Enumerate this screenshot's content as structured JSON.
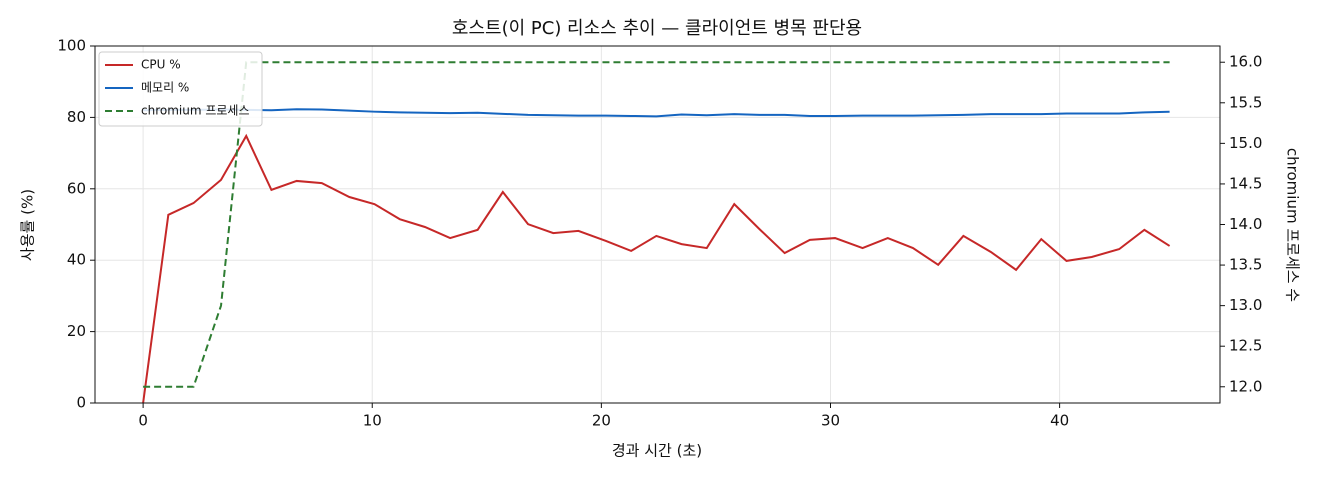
{
  "chart_data": {
    "type": "line",
    "title": "호스트(이 PC) 리소스 추이 — 클라이언트 병목 판단용",
    "xlabel": "경과 시간 (초)",
    "ylabel": "사용률 (%)",
    "y2label": "chromium 프로세스 수",
    "x": [
      0,
      1.1,
      2.2,
      3.4,
      4.5,
      5.6,
      6.7,
      7.8,
      9.0,
      10.1,
      11.2,
      12.3,
      13.4,
      14.6,
      15.7,
      16.8,
      17.9,
      19.0,
      20.2,
      21.3,
      22.4,
      23.5,
      24.6,
      25.8,
      26.9,
      28.0,
      29.1,
      30.2,
      31.4,
      32.5,
      33.6,
      34.7,
      35.8,
      37.0,
      38.1,
      39.2,
      40.3,
      41.4,
      42.6,
      43.7,
      44.8
    ],
    "series": [
      {
        "name": "CPU %",
        "color": "#c62828",
        "dashed": false,
        "values": [
          0,
          52.7,
          56,
          62.5,
          74.8,
          59.7,
          62.2,
          61.6,
          57.7,
          55.7,
          51.5,
          49.3,
          46.2,
          48.5,
          59.1,
          50.1,
          47.6,
          48.2,
          45.4,
          42.6,
          46.8,
          44.5,
          43.4,
          55.7,
          48.7,
          42.0,
          45.7,
          46.2,
          43.4,
          46.2,
          43.4,
          38.7,
          46.8,
          42.3,
          37.3,
          45.9,
          39.8,
          40.9,
          43.1,
          48.5,
          44.0
        ]
      },
      {
        "name": "메모리 %",
        "color": "#1565c0",
        "dashed": false,
        "values": [
          82.0,
          82.1,
          82.1,
          82.2,
          82.1,
          82.0,
          82.3,
          82.2,
          81.9,
          81.6,
          81.4,
          81.3,
          81.2,
          81.3,
          81.0,
          80.7,
          80.6,
          80.5,
          80.5,
          80.4,
          80.3,
          80.8,
          80.6,
          80.9,
          80.7,
          80.7,
          80.4,
          80.4,
          80.5,
          80.5,
          80.5,
          80.6,
          80.7,
          80.9,
          80.9,
          80.9,
          81.1,
          81.1,
          81.1,
          81.4,
          81.6
        ]
      },
      {
        "name": "chromium 프로세스",
        "color": "#2e7d32",
        "dashed": true,
        "axis": "y2",
        "values": [
          12,
          12,
          12,
          13,
          16,
          16,
          16,
          16,
          16,
          16,
          16,
          16,
          16,
          16,
          16,
          16,
          16,
          16,
          16,
          16,
          16,
          16,
          16,
          16,
          16,
          16,
          16,
          16,
          16,
          16,
          16,
          16,
          16,
          16,
          16,
          16,
          16,
          16,
          16,
          16,
          16
        ]
      }
    ],
    "xlim": [
      -2.1,
      47.0
    ],
    "xticks": [
      0,
      10,
      20,
      30,
      40
    ],
    "ylim": [
      0,
      100
    ],
    "yticks": [
      0,
      20,
      40,
      60,
      80,
      100
    ],
    "y2lim": [
      11.8,
      16.2
    ],
    "y2ticks": [
      {
        "value": 12,
        "label": "12.0"
      },
      12.5,
      {
        "value": 13,
        "label": "13.0"
      },
      13.5,
      {
        "value": 14,
        "label": "14.0"
      },
      14.5,
      {
        "value": 15,
        "label": "15.0"
      },
      15.5,
      {
        "value": 16,
        "label": "16.0"
      }
    ],
    "grid": true,
    "legend": "upper-left"
  }
}
